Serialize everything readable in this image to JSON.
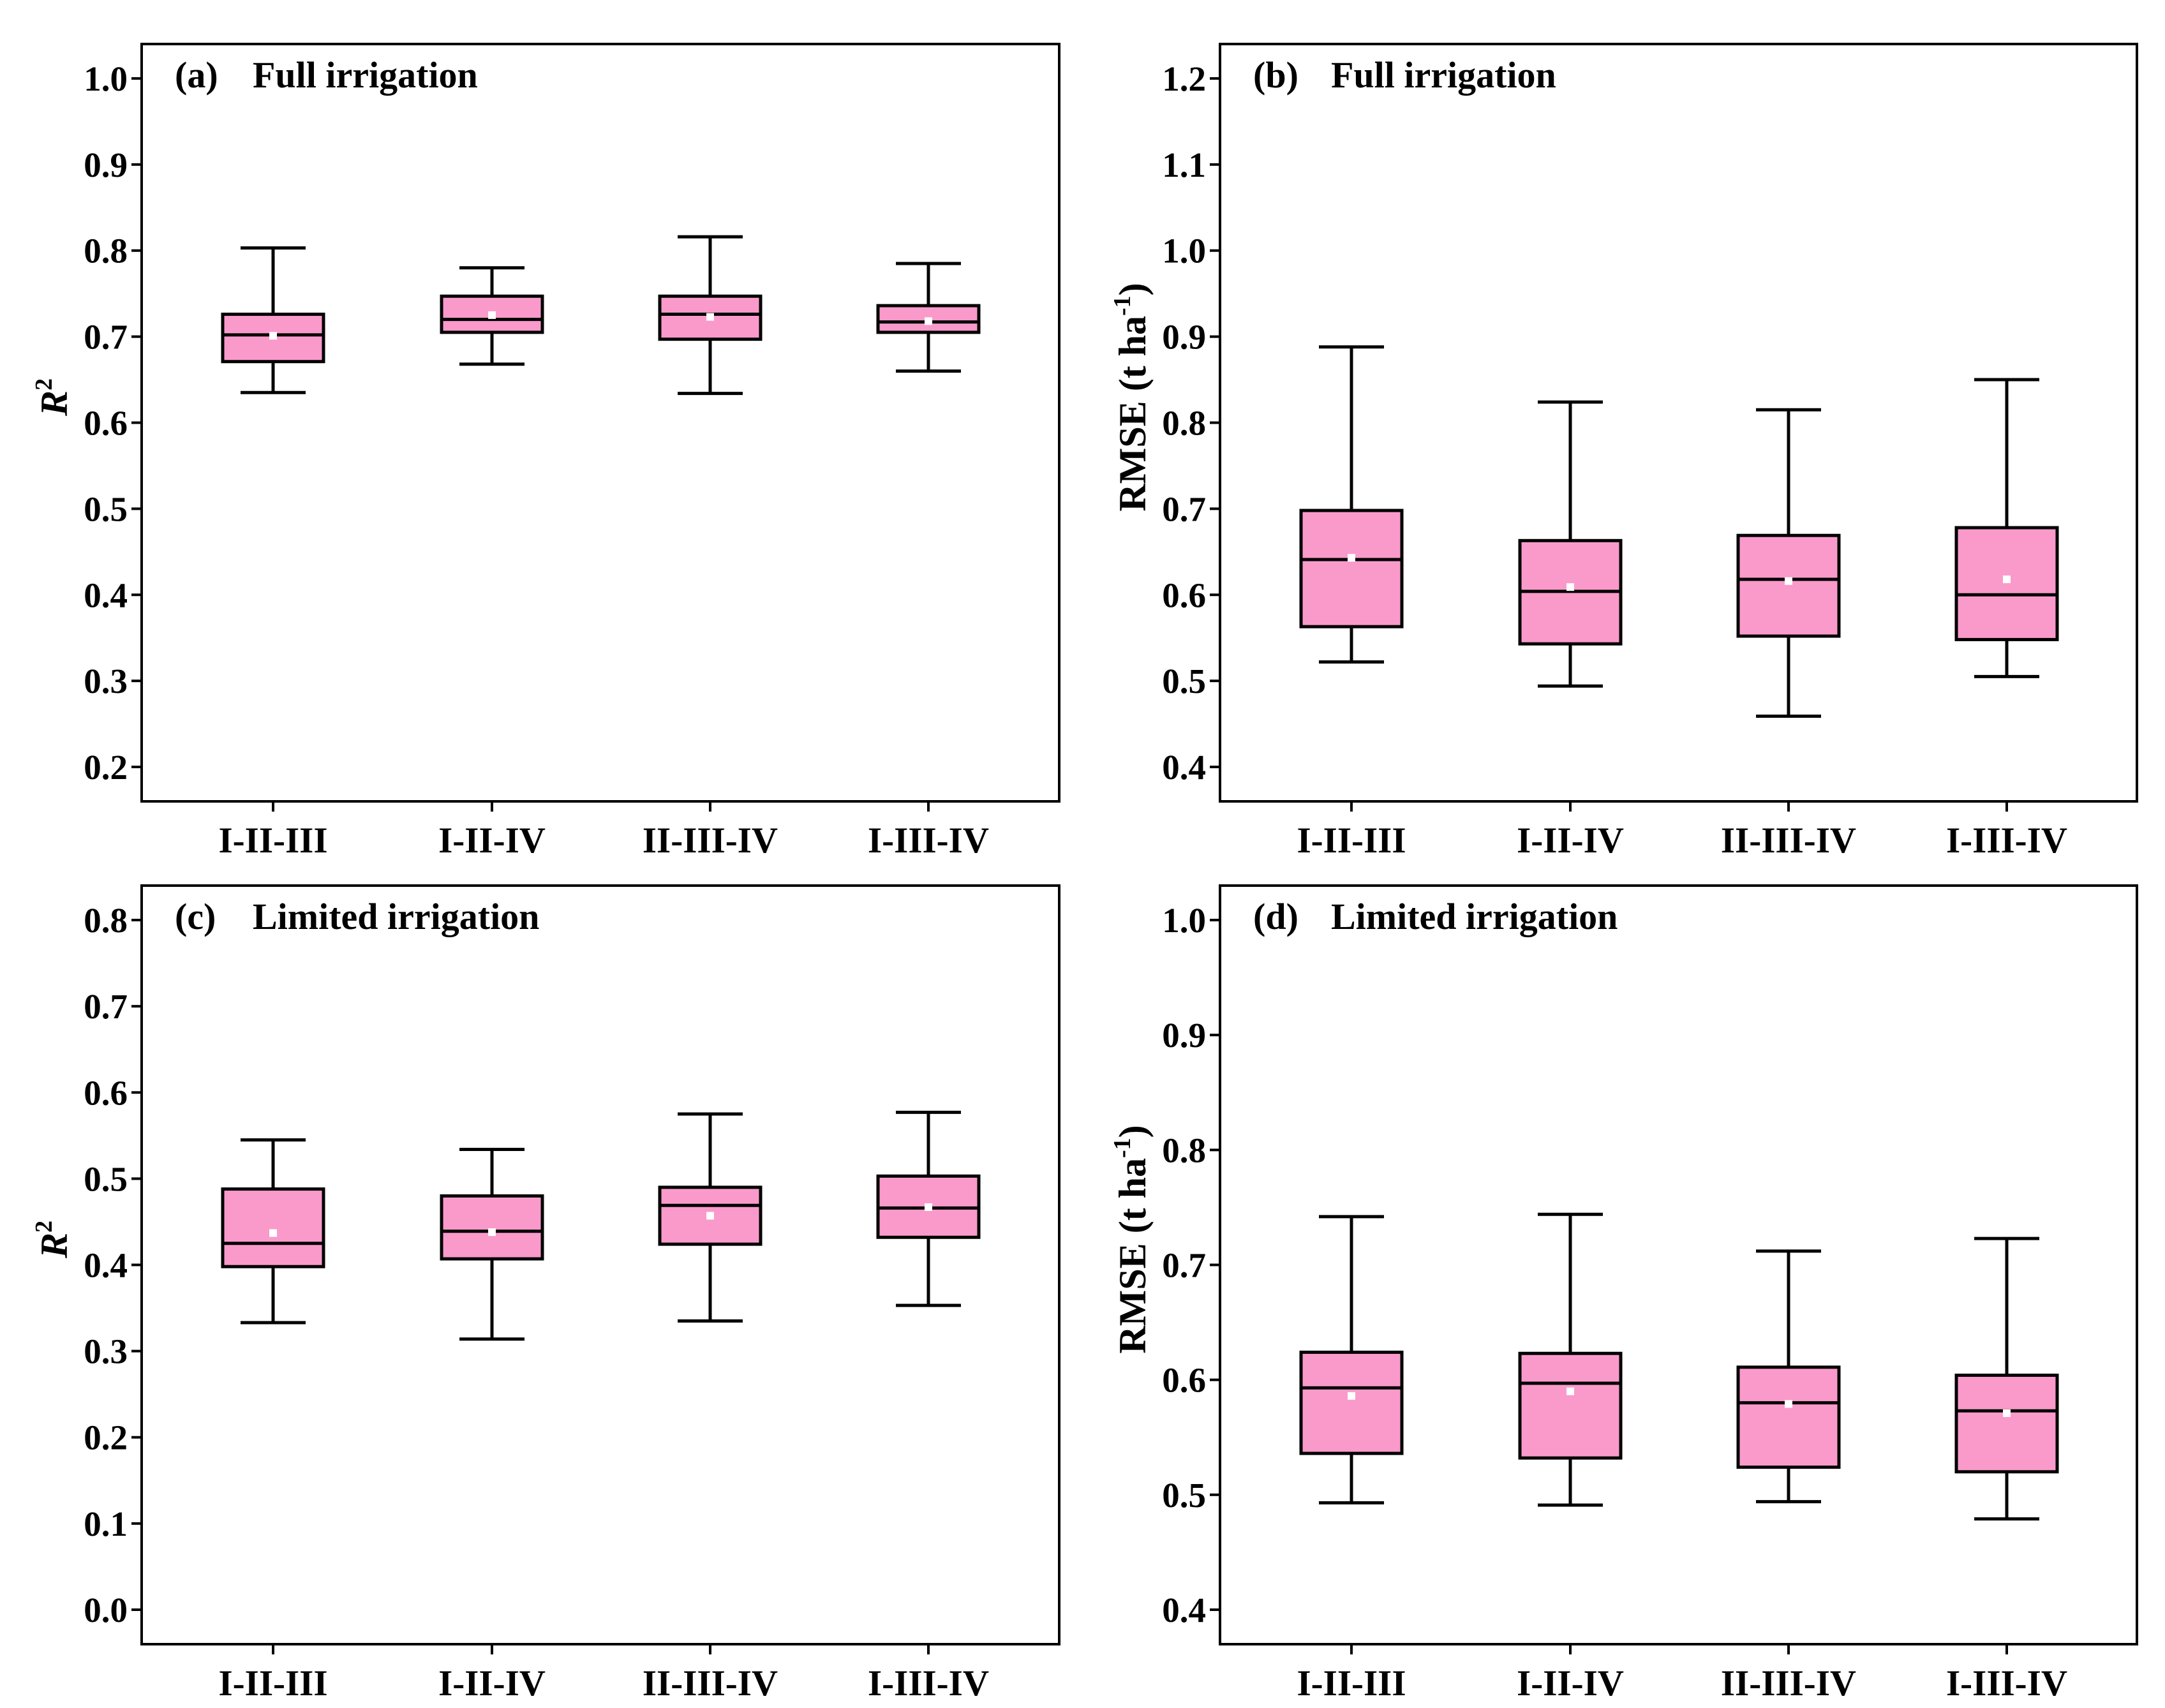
{
  "colors": {
    "box_fill": "#F99ACB",
    "stroke": "#000000",
    "mean_marker": "#FFFFFF"
  },
  "chart_data": [
    {
      "id": "a",
      "type": "box",
      "panel_label": "(a)",
      "title": "Full irrigation",
      "ylabel": "R",
      "ylabel_superscript": "2",
      "ylim": [
        0.16,
        1.04
      ],
      "yticks": [
        "1.0",
        "0.9",
        "0.8",
        "0.7",
        "0.6",
        "0.5",
        "0.4",
        "0.3",
        "0.2"
      ],
      "categories": [
        "I-II-III",
        "I-II-IV",
        "II-III-IV",
        "I-III-IV"
      ],
      "boxes": [
        {
          "whisker_low": 0.635,
          "q1": 0.671,
          "median": 0.702,
          "q3": 0.726,
          "whisker_high": 0.803,
          "mean": 0.701
        },
        {
          "whisker_low": 0.668,
          "q1": 0.705,
          "median": 0.72,
          "q3": 0.747,
          "whisker_high": 0.78,
          "mean": 0.725
        },
        {
          "whisker_low": 0.634,
          "q1": 0.697,
          "median": 0.726,
          "q3": 0.747,
          "whisker_high": 0.816,
          "mean": 0.723
        },
        {
          "whisker_low": 0.66,
          "q1": 0.705,
          "median": 0.717,
          "q3": 0.736,
          "whisker_high": 0.785,
          "mean": 0.718
        }
      ]
    },
    {
      "id": "b",
      "type": "box",
      "panel_label": "(b)",
      "title": "Full irrigation",
      "ylabel": "RMSE (t ha",
      "ylabel_superscript": "-1",
      "ylabel_suffix": ")",
      "ylim": [
        0.36,
        1.24
      ],
      "yticks": [
        "1.2",
        "1.1",
        "1.0",
        "0.9",
        "0.8",
        "0.7",
        "0.6",
        "0.5",
        "0.4"
      ],
      "categories": [
        "I-II-III",
        "I-II-IV",
        "II-III-IV",
        "I-III-IV"
      ],
      "boxes": [
        {
          "whisker_low": 0.522,
          "q1": 0.563,
          "median": 0.641,
          "q3": 0.698,
          "whisker_high": 0.888,
          "mean": 0.643
        },
        {
          "whisker_low": 0.494,
          "q1": 0.543,
          "median": 0.604,
          "q3": 0.663,
          "whisker_high": 0.824,
          "mean": 0.609
        },
        {
          "whisker_low": 0.459,
          "q1": 0.552,
          "median": 0.618,
          "q3": 0.669,
          "whisker_high": 0.815,
          "mean": 0.616
        },
        {
          "whisker_low": 0.505,
          "q1": 0.548,
          "median": 0.6,
          "q3": 0.678,
          "whisker_high": 0.85,
          "mean": 0.618
        }
      ]
    },
    {
      "id": "c",
      "type": "box",
      "panel_label": "(c)",
      "title": "Limited irrigation",
      "ylabel": "R",
      "ylabel_superscript": "2",
      "ylim": [
        -0.04,
        0.84
      ],
      "yticks": [
        "0.8",
        "0.7",
        "0.6",
        "0.5",
        "0.4",
        "0.3",
        "0.2",
        "0.1",
        "0.0"
      ],
      "categories": [
        "I-II-III",
        "I-II-IV",
        "II-III-IV",
        "I-III-IV"
      ],
      "boxes": [
        {
          "whisker_low": 0.333,
          "q1": 0.398,
          "median": 0.425,
          "q3": 0.488,
          "whisker_high": 0.545,
          "mean": 0.437
        },
        {
          "whisker_low": 0.314,
          "q1": 0.407,
          "median": 0.439,
          "q3": 0.48,
          "whisker_high": 0.534,
          "mean": 0.438
        },
        {
          "whisker_low": 0.335,
          "q1": 0.424,
          "median": 0.469,
          "q3": 0.49,
          "whisker_high": 0.575,
          "mean": 0.457
        },
        {
          "whisker_low": 0.353,
          "q1": 0.432,
          "median": 0.466,
          "q3": 0.503,
          "whisker_high": 0.577,
          "mean": 0.467
        }
      ]
    },
    {
      "id": "d",
      "type": "box",
      "panel_label": "(d)",
      "title": "Limited irrigation",
      "ylabel": "RMSE (t ha",
      "ylabel_superscript": "-1",
      "ylabel_suffix": ")",
      "ylim": [
        0.37,
        1.03
      ],
      "yticks": [
        "1.0",
        "0.9",
        "0.8",
        "0.7",
        "0.6",
        "0.5",
        "0.4"
      ],
      "categories": [
        "I-II-III",
        "I-II-IV",
        "II-III-IV",
        "I-III-IV"
      ],
      "boxes": [
        {
          "whisker_low": 0.493,
          "q1": 0.536,
          "median": 0.593,
          "q3": 0.624,
          "whisker_high": 0.742,
          "mean": 0.586
        },
        {
          "whisker_low": 0.491,
          "q1": 0.532,
          "median": 0.597,
          "q3": 0.623,
          "whisker_high": 0.744,
          "mean": 0.59
        },
        {
          "whisker_low": 0.494,
          "q1": 0.524,
          "median": 0.58,
          "q3": 0.611,
          "whisker_high": 0.712,
          "mean": 0.579
        },
        {
          "whisker_low": 0.479,
          "q1": 0.52,
          "median": 0.573,
          "q3": 0.604,
          "whisker_high": 0.723,
          "mean": 0.571
        }
      ]
    }
  ]
}
